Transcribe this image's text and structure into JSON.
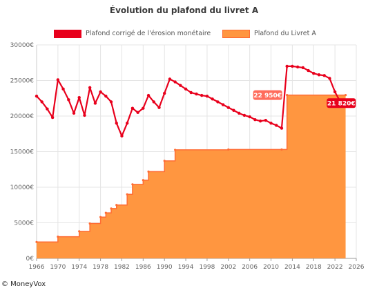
{
  "chart_data": {
    "type": "line",
    "title": "Évolution du plafond du livret A",
    "xlabel": "",
    "ylabel": "",
    "xlim": [
      1966,
      2026
    ],
    "ylim": [
      0,
      30000
    ],
    "grid": true,
    "legend_position": "top",
    "x_ticks": [
      "1966",
      "1970",
      "1974",
      "1978",
      "1982",
      "1986",
      "1990",
      "1994",
      "1998",
      "2002",
      "2006",
      "2010",
      "2014",
      "2018",
      "2022",
      "2026"
    ],
    "y_ticks": [
      "0€",
      "5000€",
      "10000€",
      "15000€",
      "20000€",
      "25000€",
      "30000€"
    ],
    "series": [
      {
        "name": "Plafond corrigé de l'érosion monétaire",
        "kind": "line",
        "color": "#e8001c",
        "x": [
          1966,
          1967,
          1968,
          1969,
          1970,
          1971,
          1972,
          1973,
          1974,
          1975,
          1976,
          1977,
          1978,
          1979,
          1980,
          1981,
          1982,
          1983,
          1984,
          1985,
          1986,
          1987,
          1988,
          1989,
          1990,
          1991,
          1992,
          1993,
          1994,
          1995,
          1996,
          1997,
          1998,
          1999,
          2000,
          2001,
          2002,
          2003,
          2004,
          2005,
          2006,
          2007,
          2008,
          2009,
          2010,
          2011,
          2012,
          2013,
          2014,
          2015,
          2016,
          2017,
          2018,
          2019,
          2020,
          2021,
          2022,
          2023,
          2024,
          2025
        ],
        "values": [
          22800,
          22000,
          21000,
          19800,
          25100,
          23800,
          22300,
          20400,
          22600,
          20100,
          24000,
          21800,
          23400,
          22800,
          22000,
          19000,
          17200,
          19000,
          21100,
          20500,
          21100,
          22900,
          22000,
          21200,
          23200,
          25200,
          24800,
          24300,
          23800,
          23300,
          23100,
          22900,
          22800,
          22400,
          22000,
          21600,
          21200,
          20800,
          20400,
          20100,
          19900,
          19500,
          19300,
          19400,
          19000,
          18700,
          18300,
          27000,
          27000,
          26900,
          26800,
          26400,
          26000,
          25800,
          25700,
          25300,
          23400,
          22000,
          21900,
          21820
        ]
      },
      {
        "name": "Plafond du Livret A",
        "kind": "step-area",
        "color": "#ff9640",
        "line_color": "#ff6c34",
        "x": [
          1966,
          1970,
          1974,
          1976,
          1978,
          1979,
          1980,
          1981,
          1983,
          1984,
          1986,
          1987,
          1990,
          1992,
          2002,
          2012,
          2013,
          2024
        ],
        "values": [
          2300,
          3050,
          3800,
          4900,
          5800,
          6400,
          7000,
          7500,
          9000,
          10400,
          11000,
          12200,
          13700,
          15250,
          15300,
          15300,
          22950,
          22950
        ]
      }
    ],
    "annotations": [
      {
        "text": "22 950€",
        "x": 2013,
        "y": 22950,
        "color": "#ff6c5c"
      },
      {
        "text": "21 820€",
        "x": 2025,
        "y": 21820,
        "color": "#e8001c"
      }
    ]
  },
  "credit": "© MoneyVox"
}
